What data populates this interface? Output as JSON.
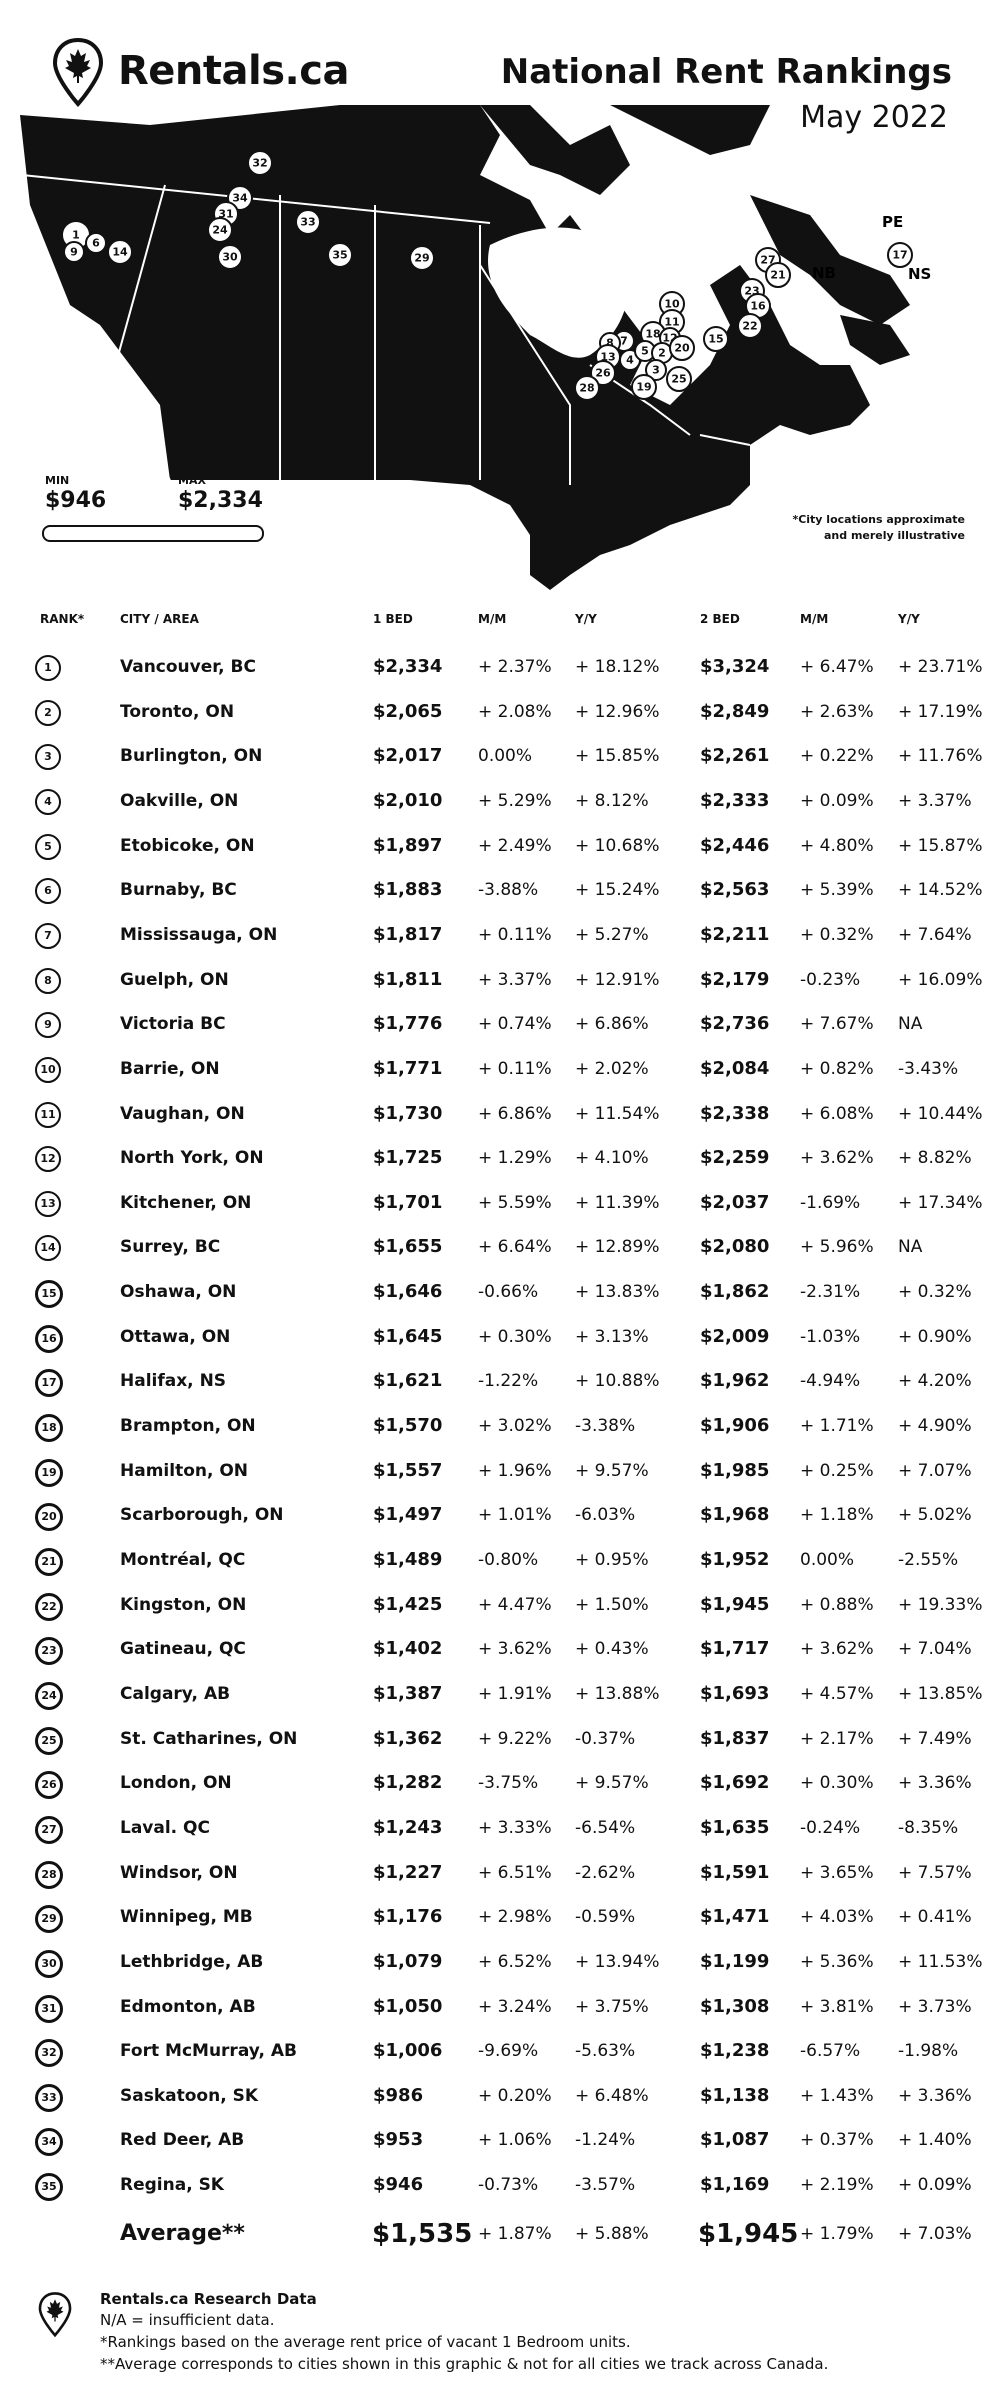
{
  "header": {
    "brand": "Rentals.ca",
    "title": "National Rent Rankings",
    "date": "May 2022"
  },
  "map": {
    "min_label": "MIN",
    "min_value": "$946",
    "max_label": "MAX",
    "max_value": "$2,334",
    "note_line1": "*City locations approximate",
    "note_line2": "and merely illustrative",
    "province_labels": [
      "PE",
      "NB",
      "NS"
    ]
  },
  "table": {
    "headers": {
      "rank": "RANK*",
      "city": "CITY / AREA",
      "bed1": "1 BED",
      "mm1": "M/M",
      "yy1": "Y/Y",
      "bed2": "2 BED",
      "mm2": "M/M",
      "yy2": "Y/Y"
    },
    "rows": [
      {
        "rank": "1",
        "city": "Vancouver, BC",
        "bed1": "$2,334",
        "mm1": "+ 2.37%",
        "yy1": "+ 18.12%",
        "bed2": "$3,324",
        "mm2": "+ 6.47%",
        "yy2": "+ 23.71%"
      },
      {
        "rank": "2",
        "city": "Toronto, ON",
        "bed1": "$2,065",
        "mm1": "+ 2.08%",
        "yy1": "+ 12.96%",
        "bed2": "$2,849",
        "mm2": "+ 2.63%",
        "yy2": "+ 17.19%"
      },
      {
        "rank": "3",
        "city": "Burlington, ON",
        "bed1": "$2,017",
        "mm1": "0.00%",
        "yy1": "+ 15.85%",
        "bed2": "$2,261",
        "mm2": "+ 0.22%",
        "yy2": "+ 11.76%"
      },
      {
        "rank": "4",
        "city": "Oakville, ON",
        "bed1": "$2,010",
        "mm1": "+ 5.29%",
        "yy1": "+ 8.12%",
        "bed2": "$2,333",
        "mm2": "+ 0.09%",
        "yy2": "+ 3.37%"
      },
      {
        "rank": "5",
        "city": "Etobicoke, ON",
        "bed1": "$1,897",
        "mm1": "+ 2.49%",
        "yy1": "+ 10.68%",
        "bed2": "$2,446",
        "mm2": "+ 4.80%",
        "yy2": "+ 15.87%"
      },
      {
        "rank": "6",
        "city": "Burnaby, BC",
        "bed1": "$1,883",
        "mm1": "-3.88%",
        "yy1": "+ 15.24%",
        "bed2": "$2,563",
        "mm2": "+ 5.39%",
        "yy2": "+ 14.52%"
      },
      {
        "rank": "7",
        "city": "Mississauga, ON",
        "bed1": "$1,817",
        "mm1": "+ 0.11%",
        "yy1": "+ 5.27%",
        "bed2": "$2,211",
        "mm2": "+ 0.32%",
        "yy2": "+ 7.64%"
      },
      {
        "rank": "8",
        "city": "Guelph, ON",
        "bed1": "$1,811",
        "mm1": "+ 3.37%",
        "yy1": "+ 12.91%",
        "bed2": "$2,179",
        "mm2": "-0.23%",
        "yy2": "+ 16.09%"
      },
      {
        "rank": "9",
        "city": "Victoria BC",
        "bed1": "$1,776",
        "mm1": "+ 0.74%",
        "yy1": "+ 6.86%",
        "bed2": "$2,736",
        "mm2": "+ 7.67%",
        "yy2": "NA"
      },
      {
        "rank": "10",
        "city": "Barrie, ON",
        "bed1": "$1,771",
        "mm1": "+ 0.11%",
        "yy1": "+ 2.02%",
        "bed2": "$2,084",
        "mm2": "+ 0.82%",
        "yy2": "-3.43%"
      },
      {
        "rank": "11",
        "city": "Vaughan, ON",
        "bed1": "$1,730",
        "mm1": "+ 6.86%",
        "yy1": "+ 11.54%",
        "bed2": "$2,338",
        "mm2": "+ 6.08%",
        "yy2": "+ 10.44%"
      },
      {
        "rank": "12",
        "city": "North York, ON",
        "bed1": "$1,725",
        "mm1": "+ 1.29%",
        "yy1": "+ 4.10%",
        "bed2": "$2,259",
        "mm2": "+ 3.62%",
        "yy2": "+ 8.82%"
      },
      {
        "rank": "13",
        "city": "Kitchener, ON",
        "bed1": "$1,701",
        "mm1": "+ 5.59%",
        "yy1": "+ 11.39%",
        "bed2": "$2,037",
        "mm2": "-1.69%",
        "yy2": "+ 17.34%"
      },
      {
        "rank": "14",
        "city": "Surrey, BC",
        "bed1": "$1,655",
        "mm1": "+ 6.64%",
        "yy1": "+ 12.89%",
        "bed2": "$2,080",
        "mm2": "+ 5.96%",
        "yy2": "NA"
      },
      {
        "rank": "15",
        "city": "Oshawa, ON",
        "bed1": "$1,646",
        "mm1": "-0.66%",
        "yy1": "+ 13.83%",
        "bed2": "$1,862",
        "mm2": "-2.31%",
        "yy2": "+ 0.32%"
      },
      {
        "rank": "16",
        "city": "Ottawa, ON",
        "bed1": "$1,645",
        "mm1": "+ 0.30%",
        "yy1": "+ 3.13%",
        "bed2": "$2,009",
        "mm2": "-1.03%",
        "yy2": "+ 0.90%"
      },
      {
        "rank": "17",
        "city": "Halifax, NS",
        "bed1": "$1,621",
        "mm1": "-1.22%",
        "yy1": "+ 10.88%",
        "bed2": "$1,962",
        "mm2": "-4.94%",
        "yy2": "+ 4.20%"
      },
      {
        "rank": "18",
        "city": "Brampton, ON",
        "bed1": "$1,570",
        "mm1": "+ 3.02%",
        "yy1": "-3.38%",
        "bed2": "$1,906",
        "mm2": "+ 1.71%",
        "yy2": "+ 4.90%"
      },
      {
        "rank": "19",
        "city": "Hamilton, ON",
        "bed1": "$1,557",
        "mm1": "+ 1.96%",
        "yy1": "+ 9.57%",
        "bed2": "$1,985",
        "mm2": "+ 0.25%",
        "yy2": "+ 7.07%"
      },
      {
        "rank": "20",
        "city": "Scarborough, ON",
        "bed1": "$1,497",
        "mm1": "+ 1.01%",
        "yy1": "-6.03%",
        "bed2": "$1,968",
        "mm2": "+ 1.18%",
        "yy2": "+ 5.02%"
      },
      {
        "rank": "21",
        "city": "Montréal, QC",
        "bed1": "$1,489",
        "mm1": "-0.80%",
        "yy1": "+ 0.95%",
        "bed2": "$1,952",
        "mm2": "0.00%",
        "yy2": "-2.55%"
      },
      {
        "rank": "22",
        "city": "Kingston, ON",
        "bed1": "$1,425",
        "mm1": "+ 4.47%",
        "yy1": "+ 1.50%",
        "bed2": "$1,945",
        "mm2": "+ 0.88%",
        "yy2": "+ 19.33%"
      },
      {
        "rank": "23",
        "city": "Gatineau, QC",
        "bed1": "$1,402",
        "mm1": "+ 3.62%",
        "yy1": "+ 0.43%",
        "bed2": "$1,717",
        "mm2": "+ 3.62%",
        "yy2": "+ 7.04%"
      },
      {
        "rank": "24",
        "city": "Calgary, AB",
        "bed1": "$1,387",
        "mm1": "+ 1.91%",
        "yy1": "+ 13.88%",
        "bed2": "$1,693",
        "mm2": "+ 4.57%",
        "yy2": "+ 13.85%"
      },
      {
        "rank": "25",
        "city": "St. Catharines, ON",
        "bed1": "$1,362",
        "mm1": "+ 9.22%",
        "yy1": "-0.37%",
        "bed2": "$1,837",
        "mm2": "+ 2.17%",
        "yy2": "+ 7.49%"
      },
      {
        "rank": "26",
        "city": "London, ON",
        "bed1": "$1,282",
        "mm1": "-3.75%",
        "yy1": "+ 9.57%",
        "bed2": "$1,692",
        "mm2": "+ 0.30%",
        "yy2": "+ 3.36%"
      },
      {
        "rank": "27",
        "city": "Laval. QC",
        "bed1": "$1,243",
        "mm1": "+ 3.33%",
        "yy1": "-6.54%",
        "bed2": "$1,635",
        "mm2": "-0.24%",
        "yy2": "-8.35%"
      },
      {
        "rank": "28",
        "city": "Windsor, ON",
        "bed1": "$1,227",
        "mm1": "+ 6.51%",
        "yy1": "-2.62%",
        "bed2": "$1,591",
        "mm2": "+ 3.65%",
        "yy2": "+ 7.57%"
      },
      {
        "rank": "29",
        "city": "Winnipeg, MB",
        "bed1": "$1,176",
        "mm1": "+ 2.98%",
        "yy1": "-0.59%",
        "bed2": "$1,471",
        "mm2": "+ 4.03%",
        "yy2": "+ 0.41%"
      },
      {
        "rank": "30",
        "city": "Lethbridge, AB",
        "bed1": "$1,079",
        "mm1": "+ 6.52%",
        "yy1": "+ 13.94%",
        "bed2": "$1,199",
        "mm2": "+ 5.36%",
        "yy2": "+ 11.53%"
      },
      {
        "rank": "31",
        "city": "Edmonton, AB",
        "bed1": "$1,050",
        "mm1": "+ 3.24%",
        "yy1": "+ 3.75%",
        "bed2": "$1,308",
        "mm2": "+ 3.81%",
        "yy2": "+ 3.73%"
      },
      {
        "rank": "32",
        "city": "Fort McMurray, AB",
        "bed1": "$1,006",
        "mm1": "-9.69%",
        "yy1": "-5.63%",
        "bed2": "$1,238",
        "mm2": "-6.57%",
        "yy2": "-1.98%"
      },
      {
        "rank": "33",
        "city": "Saskatoon, SK",
        "bed1": "$986",
        "mm1": "+ 0.20%",
        "yy1": "+ 6.48%",
        "bed2": "$1,138",
        "mm2": "+ 1.43%",
        "yy2": "+ 3.36%"
      },
      {
        "rank": "34",
        "city": "Red Deer, AB",
        "bed1": "$953",
        "mm1": "+ 1.06%",
        "yy1": "-1.24%",
        "bed2": "$1,087",
        "mm2": "+ 0.37%",
        "yy2": "+ 1.40%"
      },
      {
        "rank": "35",
        "city": "Regina, SK",
        "bed1": "$946",
        "mm1": "-0.73%",
        "yy1": "-3.57%",
        "bed2": "$1,169",
        "mm2": "+ 2.19%",
        "yy2": "+ 0.09%"
      }
    ],
    "average": {
      "label": "Average**",
      "bed1": "$1,535",
      "mm1": "+ 1.87%",
      "yy1": "+ 5.88%",
      "bed2": "$1,945",
      "mm2": "+ 1.79%",
      "yy2": "+ 7.03%"
    }
  },
  "footer": {
    "title": "Rentals.ca Research Data",
    "line1": "N/A = insufficient data.",
    "line2": "*Rankings based on the average rent price of vacant 1 Bedroom units.",
    "line3": "**Average corresponds to cities shown in this graphic & not for all cities we track across Canada."
  },
  "colors": {
    "ink": "#111111",
    "background": "#ffffff"
  },
  "icons": [
    "maple-leaf-pin-icon"
  ]
}
